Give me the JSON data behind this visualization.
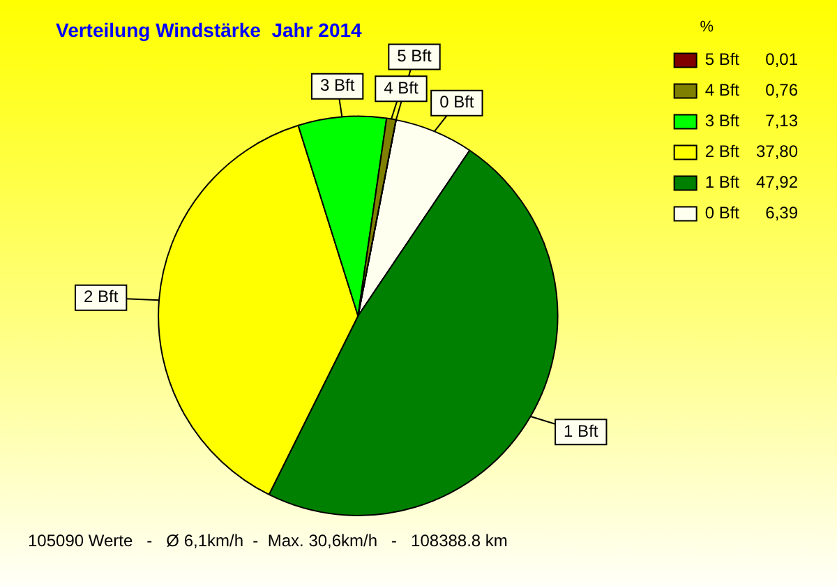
{
  "chart_data": {
    "type": "pie",
    "title": "Verteilung Windstärke  Jahr 2014",
    "legend_title": "%",
    "legend": "top right",
    "categories": [
      "0 Bft",
      "1 Bft",
      "2 Bft",
      "3 Bft",
      "4 Bft",
      "5 Bft"
    ],
    "values": [
      6.39,
      47.92,
      37.8,
      7.13,
      0.76,
      0.01
    ],
    "value_labels": [
      "6,39",
      "47,92",
      "37,80",
      "7,13",
      "0,76",
      "0,01"
    ],
    "colors": [
      "#fffff0",
      "#008000",
      "#ffff00",
      "#00ff00",
      "#808000",
      "#800000"
    ],
    "annotations": [
      "105090 Werte   -   Ø 6,1km/h  -  Max. 30,6km/h   -   108388.8 km"
    ]
  }
}
